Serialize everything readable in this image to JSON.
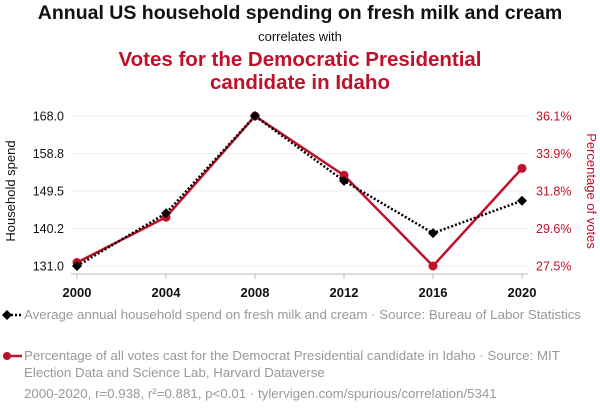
{
  "title": "Annual US household spending on fresh milk and cream",
  "subtitle": "correlates with",
  "title2": "Votes for the Democratic Presidential candidate in Idaho",
  "legend": [
    {
      "text": "Average annual household spend on fresh milk and cream · Source: Bureau of Labor Statistics",
      "color": "#000000",
      "marker": "diamond",
      "style": "dotted"
    },
    {
      "text": "Percentage of all votes cast for the Democrat Presidential candidate in Idaho · Source: MIT Election Data and Science Lab, Harvard Dataverse",
      "color": "#c0102a",
      "marker": "circle",
      "style": "solid"
    }
  ],
  "footer": "2000-2020, r=0.938, r²=0.881, p<0.01 · tylervigen.com/spurious/correlation/5341",
  "chart_data": {
    "type": "line",
    "x": [
      2000,
      2004,
      2008,
      2012,
      2016,
      2020
    ],
    "x_ticks": [
      "2000",
      "2004",
      "2008",
      "2012",
      "2016",
      "2020"
    ],
    "ylabel": "Household spend",
    "y2label": "Percentage of votes",
    "ylim": [
      131.0,
      168.0
    ],
    "y2lim": [
      27.5,
      36.1
    ],
    "y_ticks": [
      "131.0",
      "140.2",
      "149.5",
      "158.8",
      "168.0"
    ],
    "y2_ticks": [
      "27.5%",
      "29.6%",
      "31.8%",
      "33.9%",
      "36.1%"
    ],
    "grid": true,
    "series": [
      {
        "axis": "left",
        "color": "#000000",
        "values": [
          131.0,
          144.0,
          168.0,
          152.0,
          139.1,
          147.1
        ]
      },
      {
        "axis": "right",
        "color": "#c0102a",
        "values": [
          27.7,
          30.3,
          36.1,
          32.7,
          27.5,
          33.1
        ]
      }
    ]
  }
}
